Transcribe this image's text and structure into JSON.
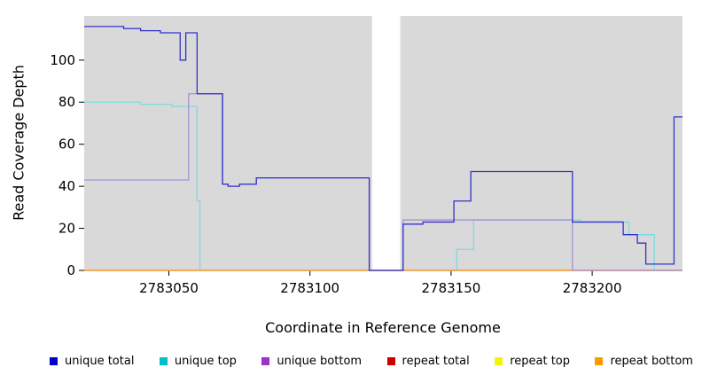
{
  "chart_data": {
    "type": "line",
    "title": "",
    "xlabel": "Coordinate in Reference Genome",
    "ylabel": "Read Coverage Depth",
    "panel_color": "#d9d9d9",
    "background_color": "#ffffff",
    "masked_region": [
      2783122,
      2783132
    ],
    "grid": false,
    "legend_position": "bottom",
    "axes": {
      "x": {
        "min": 2783020,
        "max": 2783232,
        "ticks": [
          2783050,
          2783100,
          2783150,
          2783200
        ]
      },
      "y": {
        "min": 0,
        "max": 121,
        "ticks": [
          0,
          20,
          40,
          60,
          80,
          100
        ]
      }
    },
    "series": [
      {
        "id": "unique-total",
        "name": "unique total",
        "color": "#3232cd",
        "legend_color": "#0000cc",
        "z": 6,
        "steps": [
          [
            2783020,
            116
          ],
          [
            2783034,
            115
          ],
          [
            2783040,
            114
          ],
          [
            2783047,
            113
          ],
          [
            2783054,
            100
          ],
          [
            2783056,
            113
          ],
          [
            2783060,
            84
          ],
          [
            2783069,
            41
          ],
          [
            2783071,
            40
          ],
          [
            2783075,
            41
          ],
          [
            2783081,
            44
          ],
          [
            2783121,
            0
          ],
          [
            2783133,
            22
          ],
          [
            2783140,
            23
          ],
          [
            2783151,
            33
          ],
          [
            2783157,
            47
          ],
          [
            2783193,
            23
          ],
          [
            2783211,
            17
          ],
          [
            2783216,
            13
          ],
          [
            2783219,
            3
          ],
          [
            2783229,
            73
          ],
          [
            2783232,
            73
          ]
        ]
      },
      {
        "id": "unique-top",
        "name": "unique top",
        "color": "#7fd9e2",
        "legend_color": "#00c1c1",
        "z": 3,
        "steps": [
          [
            2783020,
            80
          ],
          [
            2783040,
            79
          ],
          [
            2783051,
            78
          ],
          [
            2783060,
            33
          ],
          [
            2783061,
            0
          ],
          [
            2783152,
            10
          ],
          [
            2783158,
            24
          ],
          [
            2783196,
            23
          ],
          [
            2783213,
            17
          ],
          [
            2783222,
            0
          ],
          [
            2783232,
            0
          ]
        ]
      },
      {
        "id": "unique-bottom",
        "name": "unique bottom",
        "color": "#a78fdb",
        "legend_color": "#9933cc",
        "z": 5,
        "steps": [
          [
            2783020,
            43
          ],
          [
            2783057,
            84
          ],
          [
            2783069,
            41
          ],
          [
            2783071,
            40
          ],
          [
            2783075,
            41
          ],
          [
            2783081,
            44
          ],
          [
            2783121,
            0
          ],
          [
            2783133,
            24
          ],
          [
            2783193,
            0
          ],
          [
            2783232,
            0
          ]
        ]
      },
      {
        "id": "repeat-total",
        "name": "repeat total",
        "color": "#cc2020",
        "legend_color": "#cc0000",
        "z": 1,
        "steps": [
          [
            2783020,
            0
          ],
          [
            2783232,
            0
          ]
        ]
      },
      {
        "id": "repeat-top",
        "name": "repeat top",
        "color": "#e8e820",
        "legend_color": "#f2f20a",
        "z": 2,
        "steps": [
          [
            2783020,
            0
          ],
          [
            2783232,
            0
          ]
        ]
      },
      {
        "id": "repeat-bottom",
        "name": "repeat bottom",
        "color": "#ff9d2e",
        "legend_color": "#ff9900",
        "z": 4,
        "steps": [
          [
            2783020,
            0
          ],
          [
            2783232,
            0
          ]
        ]
      }
    ]
  }
}
